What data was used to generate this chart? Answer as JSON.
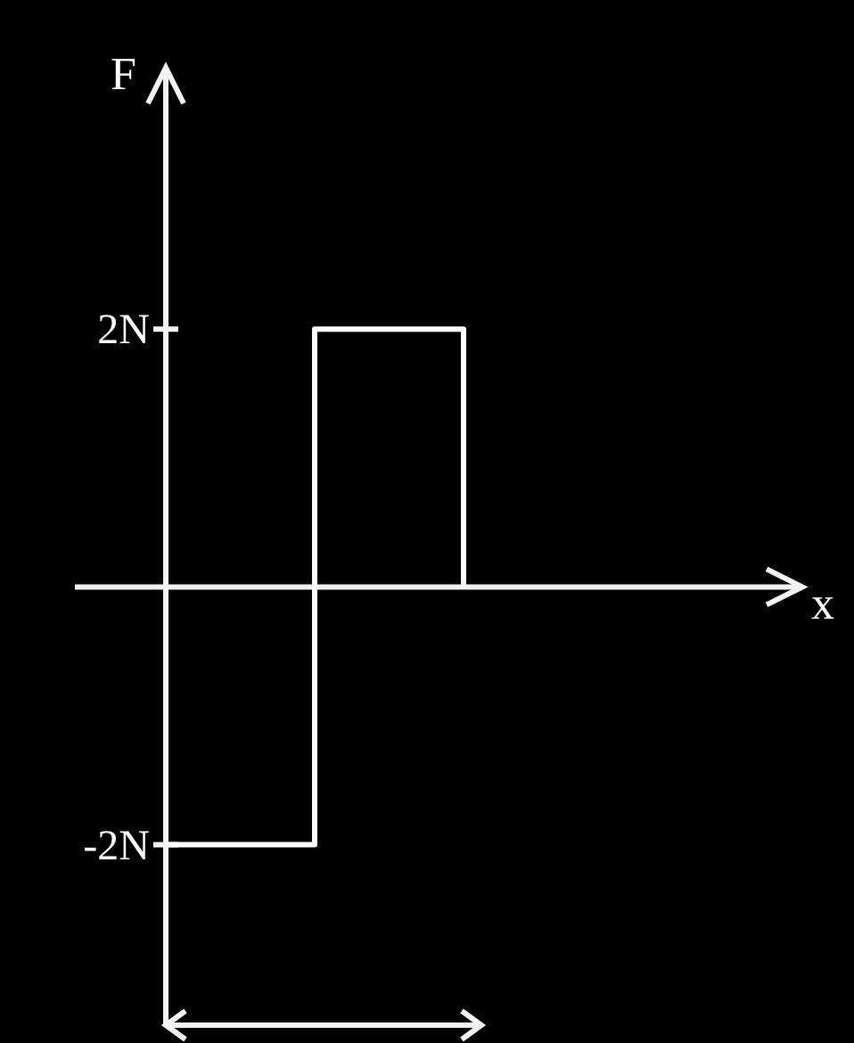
{
  "chart_data": {
    "type": "step",
    "annotations": [
      "x"
    ],
    "ylabel": "F",
    "categories": [
      null,
      null,
      null
    ],
    "series": [
      {
        "color": "#ffffff",
        "values": [
          -2,
          2,
          0
        ]
      }
    ],
    "ylim": [
      -3.4,
      4
    ],
    "yticks": [
      {
        "value": -2,
        "label": "-2N"
      },
      {
        "value": 2,
        "label": "2N"
      }
    ],
    "tick_labels": "y"
  }
}
